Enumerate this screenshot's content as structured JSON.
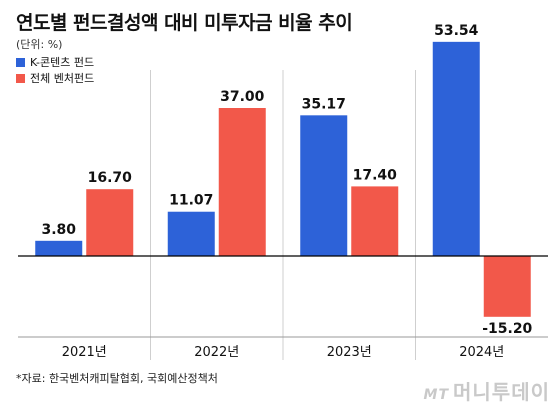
{
  "title": "연도별 펀드결성액 대비 미투자금 비율 추이",
  "unit_label": "(단위: %)",
  "source": "*자료: 한국벤처캐피탈협회, 국회예산정책처",
  "watermark": {
    "logo": "MT",
    "name": "머니투데이"
  },
  "colors": {
    "k_content": "#2d62d8",
    "all_venture": "#f2584a",
    "axis": "#000000",
    "divider": "#cfcfcf"
  },
  "chart_data": {
    "type": "bar",
    "categories": [
      "2021년",
      "2022년",
      "2023년",
      "2024년"
    ],
    "series": [
      {
        "name": "K-콘텐츠 펀드",
        "values": [
          3.8,
          11.07,
          35.17,
          53.54
        ],
        "labels": [
          "3.80",
          "11.07",
          "35.17",
          "53.54"
        ]
      },
      {
        "name": "전체 벤처펀드",
        "values": [
          16.7,
          37.0,
          17.4,
          -15.2
        ],
        "labels": [
          "16.70",
          "37.00",
          "17.40",
          "-15.20"
        ]
      }
    ],
    "title": "연도별 펀드결성액 대비 미투자금 비율 추이",
    "xlabel": "",
    "ylabel": "",
    "ylim": [
      -16,
      54
    ],
    "grid": false,
    "legend": "top-left"
  }
}
